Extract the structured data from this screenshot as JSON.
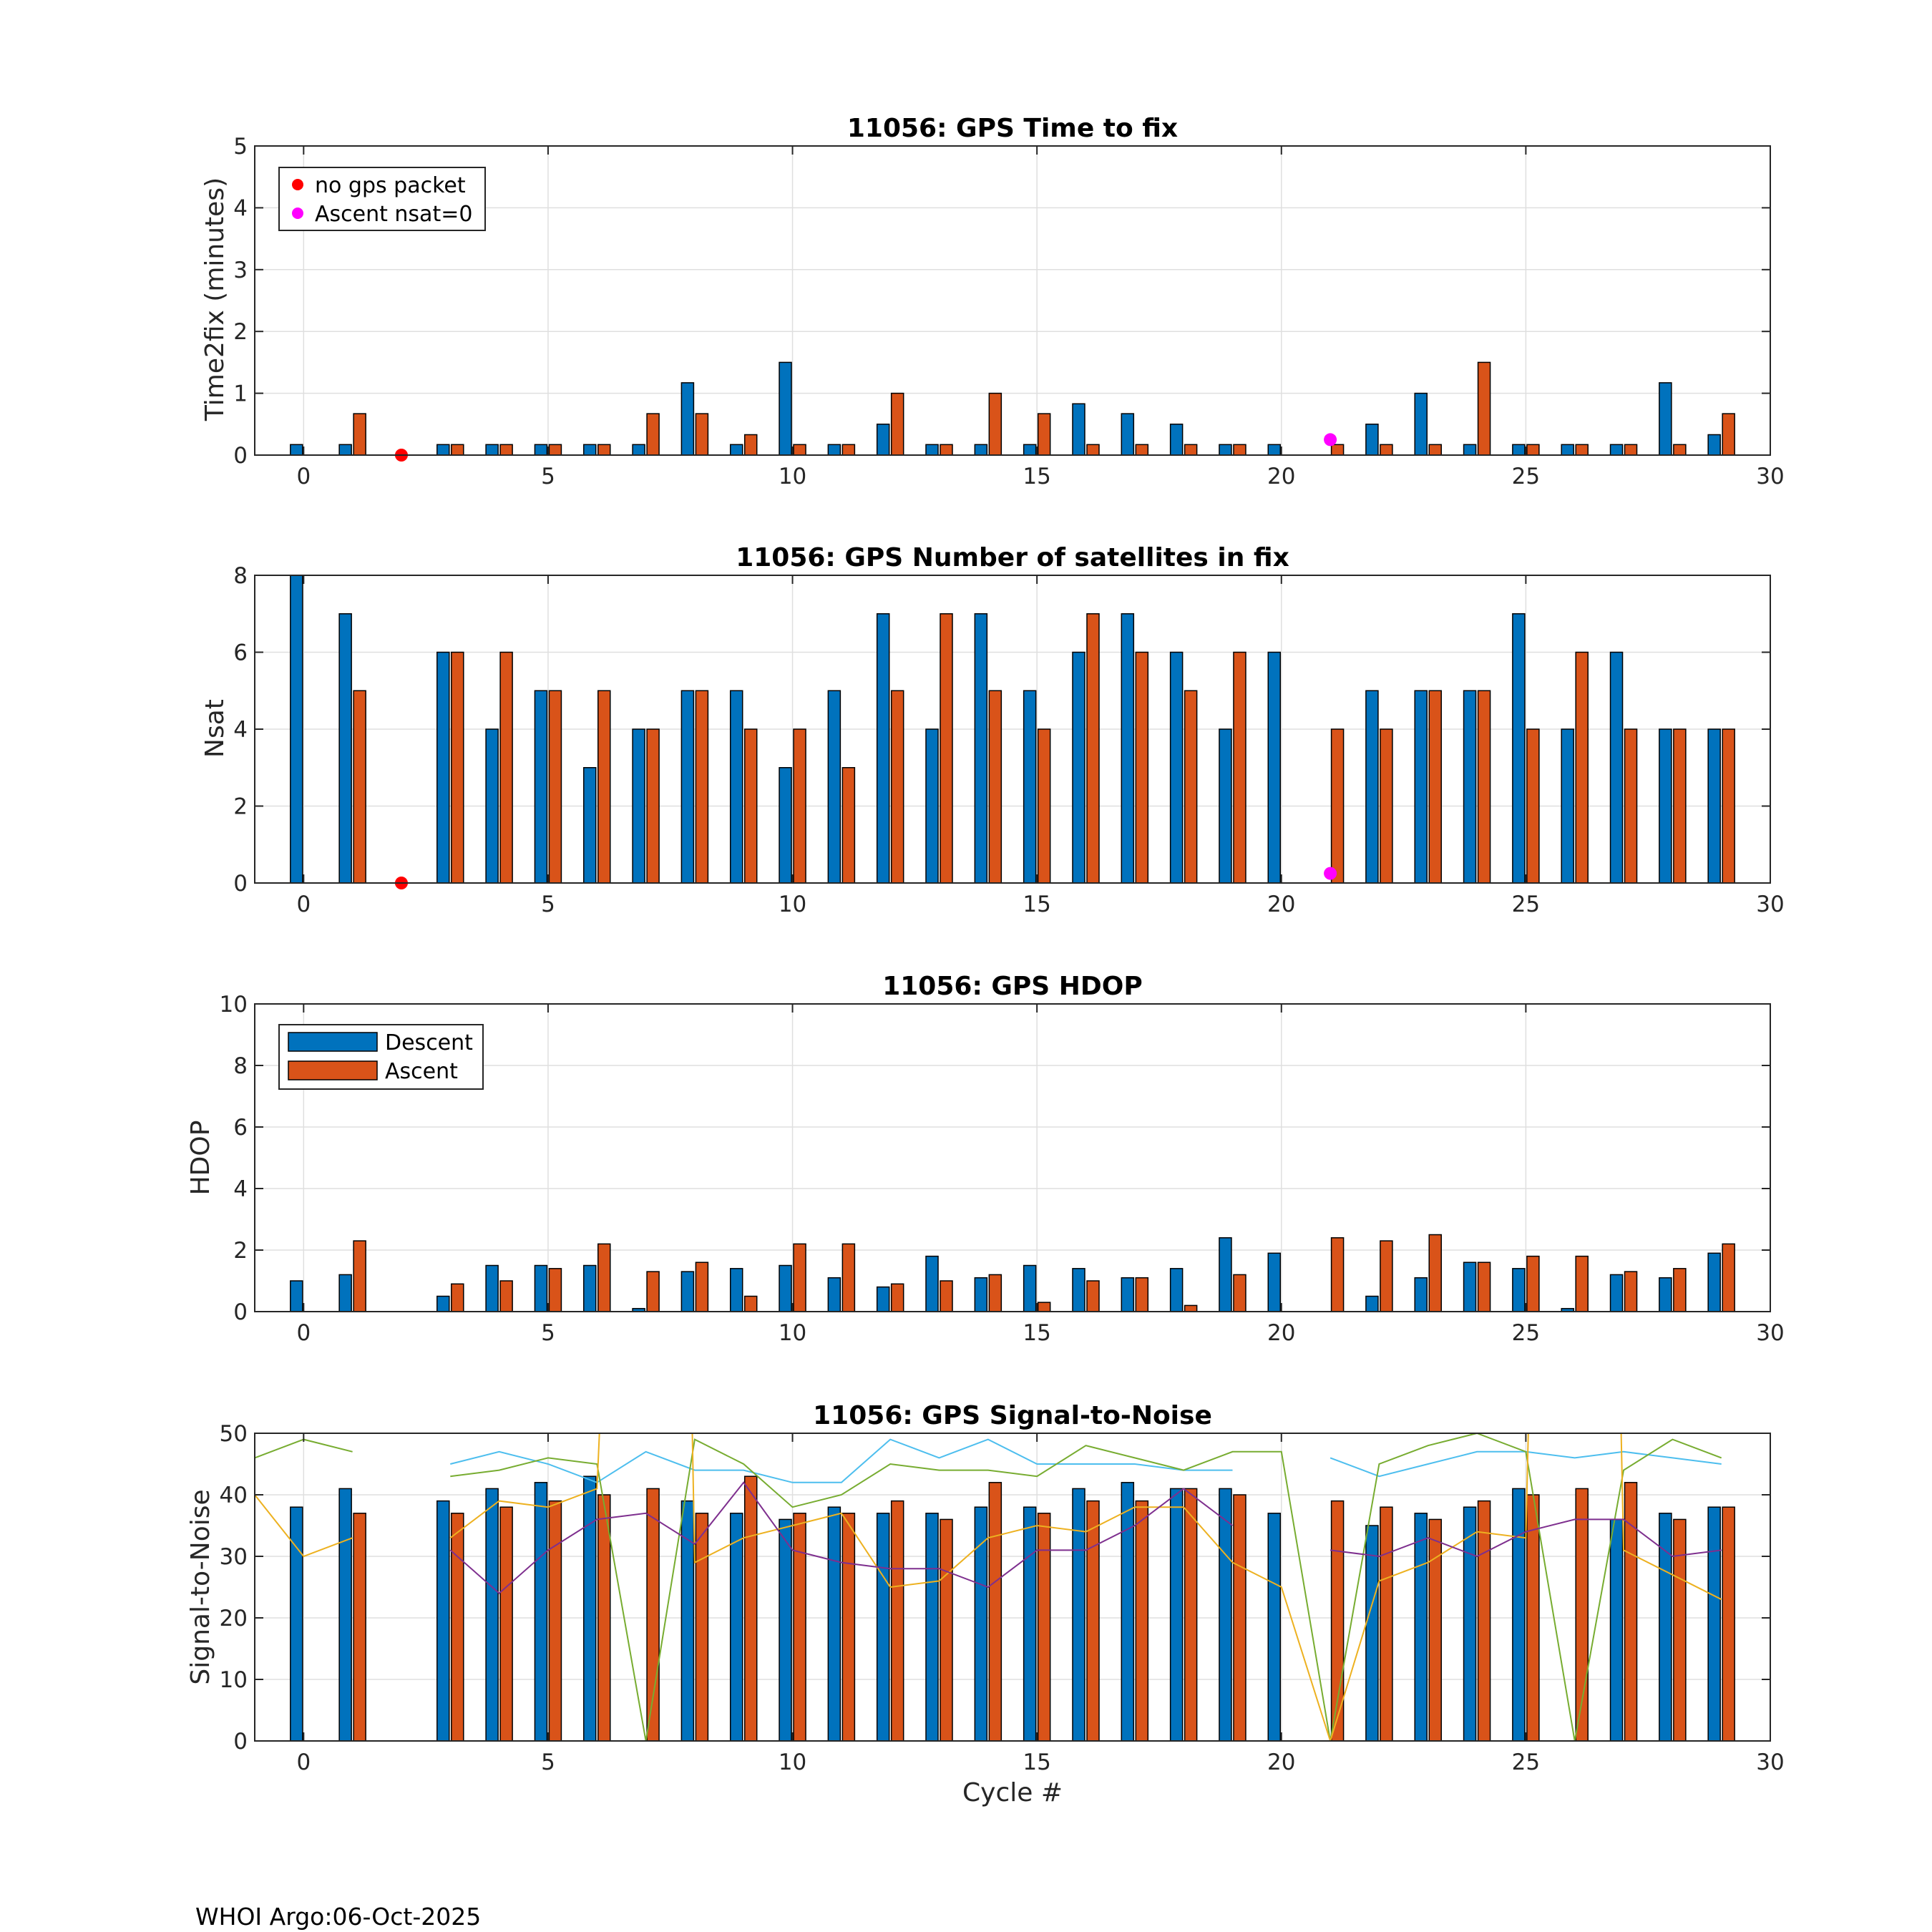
{
  "footer": "WHOI Argo:06-Oct-2025",
  "colors": {
    "descent": "#0072BD",
    "ascent": "#D95319",
    "no_packet": "#FF0000",
    "nsat_zero": "#FF00FF",
    "snr_lines": [
      "#4DBEEE",
      "#77AC30",
      "#EDB120",
      "#7E2F8E"
    ]
  },
  "chart_data": [
    {
      "type": "bar",
      "title": "11056: GPS Time to fix",
      "xlabel": "",
      "ylabel": "Time2fix (minutes)",
      "xlim": [
        -1,
        30
      ],
      "ylim": [
        0,
        5
      ],
      "xticks": [
        "0",
        "5",
        "10",
        "15",
        "20",
        "25",
        "30"
      ],
      "yticks": [
        "0",
        "1",
        "2",
        "3",
        "4",
        "5"
      ],
      "grid": true,
      "legend": {
        "placement": "top-left",
        "entries": [
          {
            "label": "no gps packet",
            "marker": "dot",
            "color": "#FF0000"
          },
          {
            "label": "Ascent nsat=0",
            "marker": "dot",
            "color": "#FF00FF"
          }
        ]
      },
      "x": [
        0,
        1,
        2,
        3,
        4,
        5,
        6,
        7,
        8,
        9,
        10,
        11,
        12,
        13,
        14,
        15,
        16,
        17,
        18,
        19,
        20,
        21,
        22,
        23,
        24,
        25,
        26,
        27,
        28,
        29
      ],
      "series": [
        {
          "name": "Descent",
          "values": [
            0.17,
            0.17,
            null,
            0.17,
            0.17,
            0.17,
            0.17,
            0.17,
            1.17,
            0.17,
            1.5,
            0.17,
            0.5,
            0.17,
            0.17,
            0.17,
            0.83,
            0.67,
            0.5,
            0.17,
            0.17,
            null,
            0.5,
            1.0,
            0.17,
            0.17,
            0.17,
            0.17,
            1.17,
            0.33
          ]
        },
        {
          "name": "Ascent",
          "values": [
            null,
            0.67,
            null,
            0.17,
            0.17,
            0.17,
            0.17,
            0.67,
            0.67,
            0.33,
            0.17,
            0.17,
            1.0,
            0.17,
            1.0,
            0.67,
            0.17,
            0.17,
            0.17,
            0.17,
            null,
            0.17,
            0.17,
            0.17,
            1.5,
            0.17,
            0.17,
            0.17,
            0.17,
            0.67
          ]
        }
      ],
      "markers": [
        {
          "label": "no gps packet",
          "x": 2,
          "y": 0
        },
        {
          "label": "Ascent nsat=0",
          "x": 21,
          "y": 0.25
        }
      ]
    },
    {
      "type": "bar",
      "title": "11056: GPS Number of satellites in fix",
      "xlabel": "",
      "ylabel": "Nsat",
      "xlim": [
        -1,
        30
      ],
      "ylim": [
        0,
        8
      ],
      "xticks": [
        "0",
        "5",
        "10",
        "15",
        "20",
        "25",
        "30"
      ],
      "yticks": [
        "0",
        "2",
        "4",
        "6",
        "8"
      ],
      "grid": true,
      "x": [
        0,
        1,
        2,
        3,
        4,
        5,
        6,
        7,
        8,
        9,
        10,
        11,
        12,
        13,
        14,
        15,
        16,
        17,
        18,
        19,
        20,
        21,
        22,
        23,
        24,
        25,
        26,
        27,
        28,
        29
      ],
      "series": [
        {
          "name": "Descent",
          "values": [
            8,
            7,
            null,
            6,
            4,
            5,
            3,
            4,
            5,
            5,
            3,
            5,
            7,
            4,
            7,
            5,
            6,
            7,
            6,
            4,
            6,
            null,
            5,
            5,
            5,
            7,
            4,
            6,
            4,
            4
          ]
        },
        {
          "name": "Ascent",
          "values": [
            null,
            5,
            null,
            6,
            6,
            5,
            5,
            4,
            5,
            4,
            4,
            3,
            5,
            7,
            5,
            4,
            7,
            6,
            5,
            6,
            null,
            4,
            4,
            5,
            5,
            4,
            6,
            4,
            4,
            4
          ]
        }
      ],
      "markers": [
        {
          "label": "no gps packet",
          "x": 2,
          "y": 0
        },
        {
          "label": "Ascent nsat=0",
          "x": 21,
          "y": 0.25
        }
      ]
    },
    {
      "type": "bar",
      "title": "11056: GPS HDOP",
      "xlabel": "",
      "ylabel": "HDOP",
      "xlim": [
        -1,
        30
      ],
      "ylim": [
        0,
        10
      ],
      "xticks": [
        "0",
        "5",
        "10",
        "15",
        "20",
        "25",
        "30"
      ],
      "yticks": [
        "0",
        "2",
        "4",
        "6",
        "8",
        "10"
      ],
      "grid": true,
      "legend": {
        "placement": "top-left",
        "entries": [
          {
            "label": "Descent",
            "marker": "bar",
            "color": "#0072BD"
          },
          {
            "label": "Ascent",
            "marker": "bar",
            "color": "#D95319"
          }
        ]
      },
      "x": [
        0,
        1,
        2,
        3,
        4,
        5,
        6,
        7,
        8,
        9,
        10,
        11,
        12,
        13,
        14,
        15,
        16,
        17,
        18,
        19,
        20,
        21,
        22,
        23,
        24,
        25,
        26,
        27,
        28,
        29
      ],
      "series": [
        {
          "name": "Descent",
          "values": [
            1.0,
            1.2,
            0,
            0.5,
            1.5,
            1.5,
            1.5,
            0.1,
            1.3,
            1.4,
            1.5,
            1.1,
            0.8,
            1.8,
            1.1,
            1.5,
            1.4,
            1.1,
            1.4,
            2.4,
            1.9,
            0,
            0.5,
            1.1,
            1.6,
            1.4,
            0.1,
            1.2,
            1.1,
            1.9
          ]
        },
        {
          "name": "Ascent",
          "values": [
            0,
            2.3,
            0,
            0.9,
            1.0,
            1.4,
            2.2,
            1.3,
            1.6,
            0.5,
            2.2,
            2.2,
            0.9,
            1.0,
            1.2,
            0.3,
            1.0,
            1.1,
            0.2,
            1.2,
            0,
            2.4,
            2.3,
            2.5,
            1.6,
            1.8,
            1.8,
            1.3,
            1.4,
            2.2
          ]
        }
      ]
    },
    {
      "type": "bar",
      "title": "11056: GPS Signal-to-Noise",
      "xlabel": "Cycle #",
      "ylabel": "Signal-to-Noise",
      "xlim": [
        -1,
        30
      ],
      "ylim": [
        0,
        50
      ],
      "xticks": [
        "0",
        "5",
        "10",
        "15",
        "20",
        "25",
        "30"
      ],
      "yticks": [
        "0",
        "10",
        "20",
        "30",
        "40",
        "50"
      ],
      "grid": true,
      "x": [
        0,
        1,
        2,
        3,
        4,
        5,
        6,
        7,
        8,
        9,
        10,
        11,
        12,
        13,
        14,
        15,
        16,
        17,
        18,
        19,
        20,
        21,
        22,
        23,
        24,
        25,
        26,
        27,
        28,
        29
      ],
      "series": [
        {
          "name": "Descent",
          "values": [
            38,
            41,
            null,
            39,
            41,
            42,
            43,
            null,
            39,
            37,
            36,
            38,
            37,
            37,
            38,
            38,
            41,
            42,
            41,
            41,
            37,
            null,
            35,
            37,
            38,
            41,
            null,
            36,
            37,
            38
          ]
        },
        {
          "name": "Ascent",
          "values": [
            null,
            37,
            null,
            37,
            38,
            39,
            40,
            41,
            37,
            43,
            37,
            37,
            39,
            36,
            42,
            37,
            39,
            39,
            41,
            40,
            null,
            39,
            38,
            36,
            39,
            40,
            41,
            42,
            36,
            38
          ]
        }
      ],
      "lines": [
        {
          "name": "snr-line-1",
          "color": "#4DBEEE",
          "points": [
            [
              3,
              45
            ],
            [
              4,
              47
            ],
            [
              5,
              45
            ],
            [
              6,
              42
            ],
            [
              7,
              47
            ],
            [
              8,
              44
            ],
            [
              9,
              44
            ],
            [
              10,
              42
            ],
            [
              11,
              42
            ],
            [
              12,
              49
            ],
            [
              13,
              46
            ],
            [
              14,
              49
            ],
            [
              15,
              45
            ],
            [
              16,
              45
            ],
            [
              17,
              45
            ],
            [
              18,
              44
            ],
            [
              19,
              44
            ],
            [
              null,
              null
            ],
            [
              21,
              46
            ],
            [
              22,
              43
            ],
            [
              23,
              45
            ],
            [
              24,
              47
            ],
            [
              25,
              47
            ],
            [
              26,
              46
            ],
            [
              27,
              47
            ],
            [
              28,
              46
            ],
            [
              29,
              45
            ]
          ]
        },
        {
          "name": "snr-line-2",
          "color": "#77AC30",
          "points": [
            [
              -1,
              46
            ],
            [
              0,
              49
            ],
            [
              1,
              47
            ],
            [
              null,
              null
            ],
            [
              3,
              43
            ],
            [
              4,
              44
            ],
            [
              5,
              46
            ],
            [
              6,
              45
            ],
            [
              7,
              0
            ],
            [
              8,
              49
            ],
            [
              9,
              45
            ],
            [
              10,
              38
            ],
            [
              11,
              40
            ],
            [
              12,
              45
            ],
            [
              13,
              44
            ],
            [
              14,
              44
            ],
            [
              15,
              43
            ],
            [
              16,
              48
            ],
            [
              17,
              46
            ],
            [
              18,
              44
            ],
            [
              19,
              47
            ],
            [
              20,
              47
            ],
            [
              21,
              0
            ],
            [
              22,
              45
            ],
            [
              23,
              48
            ],
            [
              24,
              50
            ],
            [
              25,
              47
            ],
            [
              26,
              0
            ],
            [
              27,
              44
            ],
            [
              28,
              49
            ],
            [
              29,
              46
            ]
          ]
        },
        {
          "name": "snr-line-3",
          "color": "#EDB120",
          "points": [
            [
              -1,
              40
            ],
            [
              0,
              30
            ],
            [
              1,
              33
            ],
            [
              null,
              null
            ],
            [
              3,
              33
            ],
            [
              4,
              39
            ],
            [
              5,
              38
            ],
            [
              6,
              41
            ],
            [
              6.05,
              50
            ],
            [
              null,
              null
            ],
            [
              7.95,
              50
            ],
            [
              8,
              29
            ],
            [
              9,
              33
            ],
            [
              10,
              35
            ],
            [
              11,
              37
            ],
            [
              12,
              25
            ],
            [
              13,
              26
            ],
            [
              14,
              33
            ],
            [
              15,
              35
            ],
            [
              16,
              34
            ],
            [
              17,
              38
            ],
            [
              18,
              38
            ],
            [
              19,
              29
            ],
            [
              20,
              25
            ],
            [
              21,
              0
            ],
            [
              22,
              26
            ],
            [
              23,
              29
            ],
            [
              24,
              34
            ],
            [
              25,
              33
            ],
            [
              25.05,
              50
            ],
            [
              null,
              null
            ],
            [
              26.95,
              50
            ],
            [
              27,
              31
            ],
            [
              28,
              27
            ],
            [
              29,
              23
            ]
          ]
        },
        {
          "name": "snr-line-4",
          "color": "#7E2F8E",
          "points": [
            [
              3,
              31
            ],
            [
              4,
              24
            ],
            [
              5,
              31
            ],
            [
              6,
              36
            ],
            [
              7,
              37
            ],
            [
              8,
              32
            ],
            [
              9,
              42
            ],
            [
              10,
              31
            ],
            [
              11,
              29
            ],
            [
              12,
              28
            ],
            [
              13,
              28
            ],
            [
              14,
              25
            ],
            [
              15,
              31
            ],
            [
              16,
              31
            ],
            [
              17,
              35
            ],
            [
              18,
              41
            ],
            [
              19,
              35
            ],
            [
              null,
              null
            ],
            [
              21,
              31
            ],
            [
              22,
              30
            ],
            [
              23,
              33
            ],
            [
              24,
              30
            ],
            [
              25,
              34
            ],
            [
              26,
              36
            ],
            [
              27,
              36
            ],
            [
              28,
              30
            ],
            [
              29,
              31
            ]
          ]
        }
      ]
    }
  ]
}
